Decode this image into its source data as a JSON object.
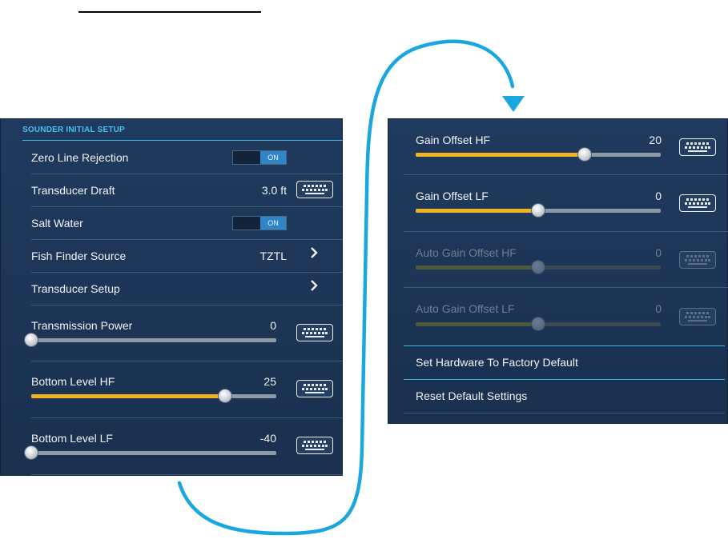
{
  "left_panel": {
    "header": "SOUNDER INITIAL SETUP",
    "zero_line_rejection": {
      "label": "Zero Line Rejection",
      "toggle": "ON"
    },
    "transducer_draft": {
      "label": "Transducer Draft",
      "value": "3.0 ft"
    },
    "salt_water": {
      "label": "Salt Water",
      "toggle": "ON"
    },
    "fish_finder_source": {
      "label": "Fish Finder Source",
      "value": "TZTL"
    },
    "transducer_setup": {
      "label": "Transducer Setup"
    },
    "transmission_power": {
      "label": "Transmission Power",
      "value": "0",
      "level": 0.0
    },
    "bottom_level_hf": {
      "label": "Bottom Level HF",
      "value": "25",
      "level": 0.79
    },
    "bottom_level_lf": {
      "label": "Bottom Level LF",
      "value": "-40",
      "level": 0.0
    }
  },
  "right_panel": {
    "gain_offset_hf": {
      "label": "Gain Offset HF",
      "value": "20",
      "level": 0.69
    },
    "gain_offset_lf": {
      "label": "Gain Offset LF",
      "value": "0",
      "level": 0.5
    },
    "auto_gain_offset_hf": {
      "label": "Auto Gain Offset HF",
      "value": "0",
      "level": 0.5
    },
    "auto_gain_offset_lf": {
      "label": "Auto Gain Offset LF",
      "value": "0",
      "level": 0.5
    },
    "set_hardware_factory_default": {
      "label": "Set Hardware To Factory Default"
    },
    "reset_default_settings": {
      "label": "Reset Default Settings"
    }
  },
  "icons": {
    "keyboard": "keyboard-icon",
    "chevron": "chevron-right-icon"
  },
  "colors": {
    "accent": "#49c3ee",
    "slider_fill": "#f1b322",
    "panel_bg": "#1d3657",
    "flow_arrow": "#1aa7e0"
  }
}
